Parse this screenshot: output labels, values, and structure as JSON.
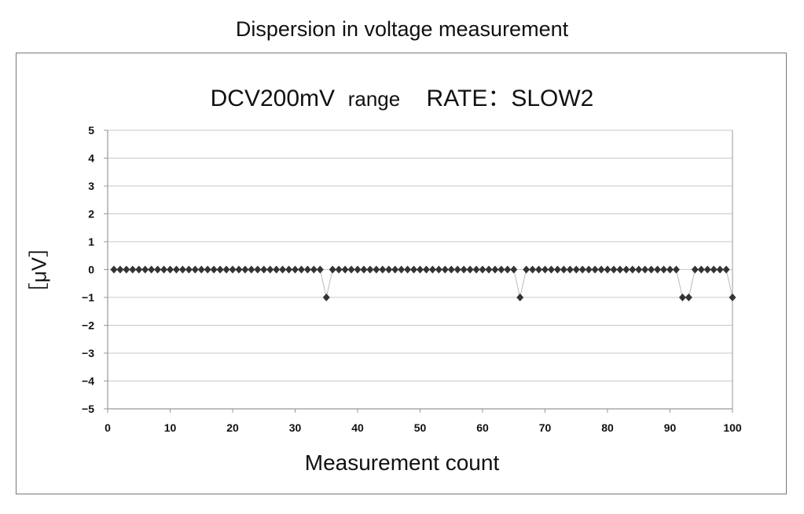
{
  "outer_title": "Dispersion in voltage measurement",
  "chart_data": {
    "type": "line",
    "title_parts": [
      "DCV200mV",
      "range",
      "RATE：SLOW2"
    ],
    "xlabel": "Measurement count",
    "ylabel": "［μV］",
    "xlim": [
      0,
      100
    ],
    "ylim": [
      -5,
      5
    ],
    "xticks": [
      0,
      10,
      20,
      30,
      40,
      50,
      60,
      70,
      80,
      90,
      100
    ],
    "yticks": [
      5,
      4,
      3,
      2,
      1,
      0,
      -1,
      -2,
      -3,
      -4,
      -5
    ],
    "ytick_labels": [
      "5",
      "4",
      "3",
      "2",
      "1",
      "0",
      "−1",
      "−2",
      "−3",
      "−4",
      "−5"
    ],
    "grid": "horizontal",
    "marker": "diamond",
    "marker_color": "#333333",
    "line_color": "#bbbbbb",
    "x_start": 1,
    "values": [
      0,
      0,
      0,
      0,
      0,
      0,
      0,
      0,
      0,
      0,
      0,
      0,
      0,
      0,
      0,
      0,
      0,
      0,
      0,
      0,
      0,
      0,
      0,
      0,
      0,
      0,
      0,
      0,
      0,
      0,
      0,
      0,
      0,
      0,
      -1,
      0,
      0,
      0,
      0,
      0,
      0,
      0,
      0,
      0,
      0,
      0,
      0,
      0,
      0,
      0,
      0,
      0,
      0,
      0,
      0,
      0,
      0,
      0,
      0,
      0,
      0,
      0,
      0,
      0,
      0,
      -1,
      0,
      0,
      0,
      0,
      0,
      0,
      0,
      0,
      0,
      0,
      0,
      0,
      0,
      0,
      0,
      0,
      0,
      0,
      0,
      0,
      0,
      0,
      0,
      0,
      0,
      -1,
      -1,
      0,
      0,
      0,
      0,
      0,
      0,
      -1
    ]
  }
}
